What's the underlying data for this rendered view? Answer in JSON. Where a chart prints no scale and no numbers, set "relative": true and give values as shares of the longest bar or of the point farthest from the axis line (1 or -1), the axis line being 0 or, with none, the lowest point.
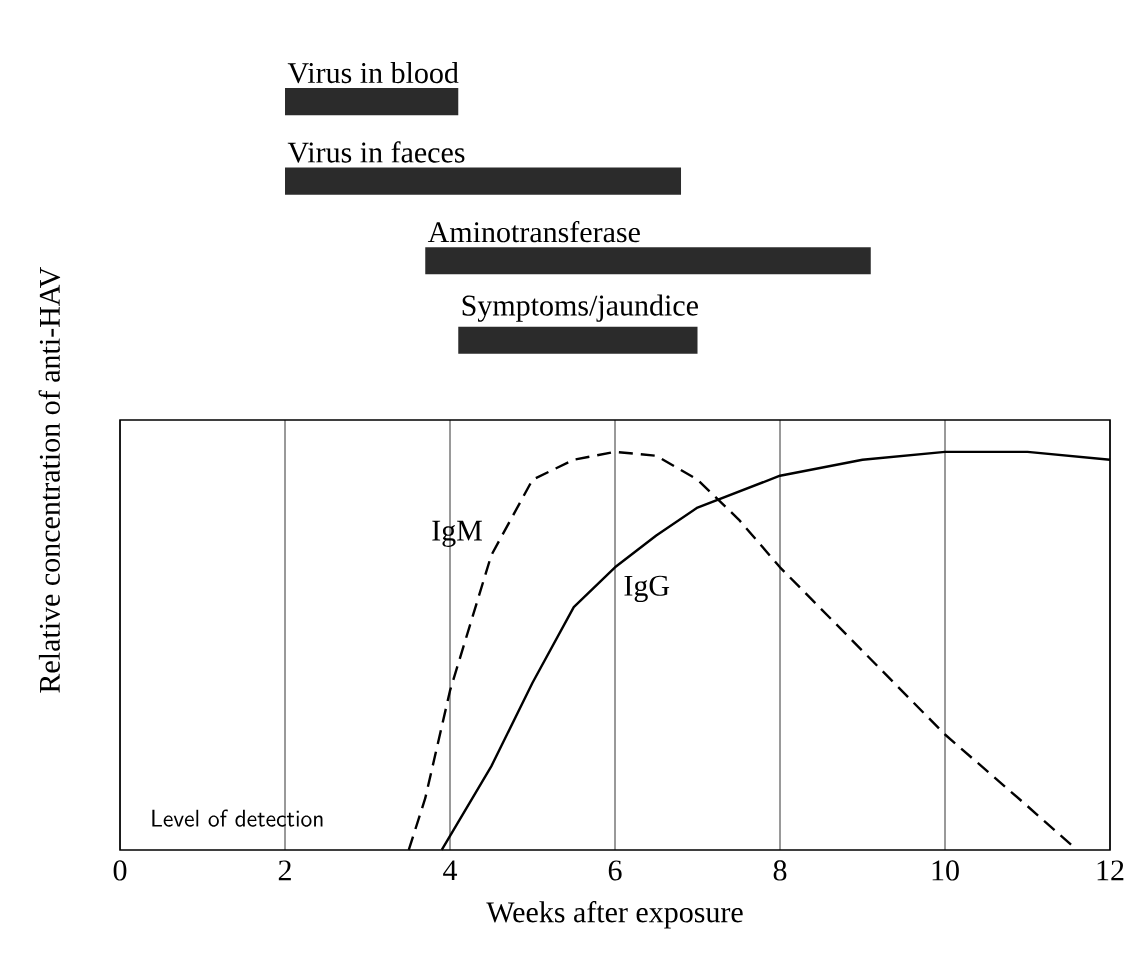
{
  "chart_data": [
    {
      "type": "bar",
      "orientation": "horizontal",
      "categories": [
        "Virus in blood",
        "Virus in faeces",
        "Aminotransferase",
        "Symptoms/jaundice"
      ],
      "base": [
        2.0,
        2.0,
        3.7,
        4.1
      ],
      "values": [
        2.1,
        4.8,
        5.4,
        2.9
      ],
      "color": "#2b2b2b",
      "xlim": [
        0,
        12
      ],
      "tick_labels": false
    },
    {
      "type": "line",
      "xlabel": "Weeks after exposure",
      "ylabel": "Relative concentration of anti-HAV",
      "relative": true,
      "xlim": [
        0,
        12
      ],
      "xticks": [
        0,
        2,
        4,
        6,
        8,
        10,
        12
      ],
      "grid": "x",
      "marker": "none",
      "annotations": [
        "Level of detection"
      ],
      "series": [
        {
          "name": "IgM",
          "color": "#000000",
          "line_style": "dashed",
          "x": [
            3.5,
            3.7,
            4,
            4.5,
            5,
            5.5,
            6,
            6.5,
            7,
            7.5,
            8,
            9,
            10,
            11,
            11.6
          ],
          "values": [
            0,
            0.13,
            0.4,
            0.74,
            0.93,
            0.98,
            1.0,
            0.99,
            0.93,
            0.83,
            0.71,
            0.5,
            0.29,
            0.11,
            0
          ]
        },
        {
          "name": "IgG",
          "color": "#000000",
          "line_style": "solid",
          "x": [
            3.9,
            4.5,
            5,
            5.5,
            6,
            6.5,
            7,
            8,
            9,
            10,
            11,
            12
          ],
          "values": [
            0,
            0.21,
            0.42,
            0.61,
            0.71,
            0.79,
            0.86,
            0.94,
            0.98,
            1.0,
            1.0,
            0.98
          ]
        }
      ]
    }
  ]
}
